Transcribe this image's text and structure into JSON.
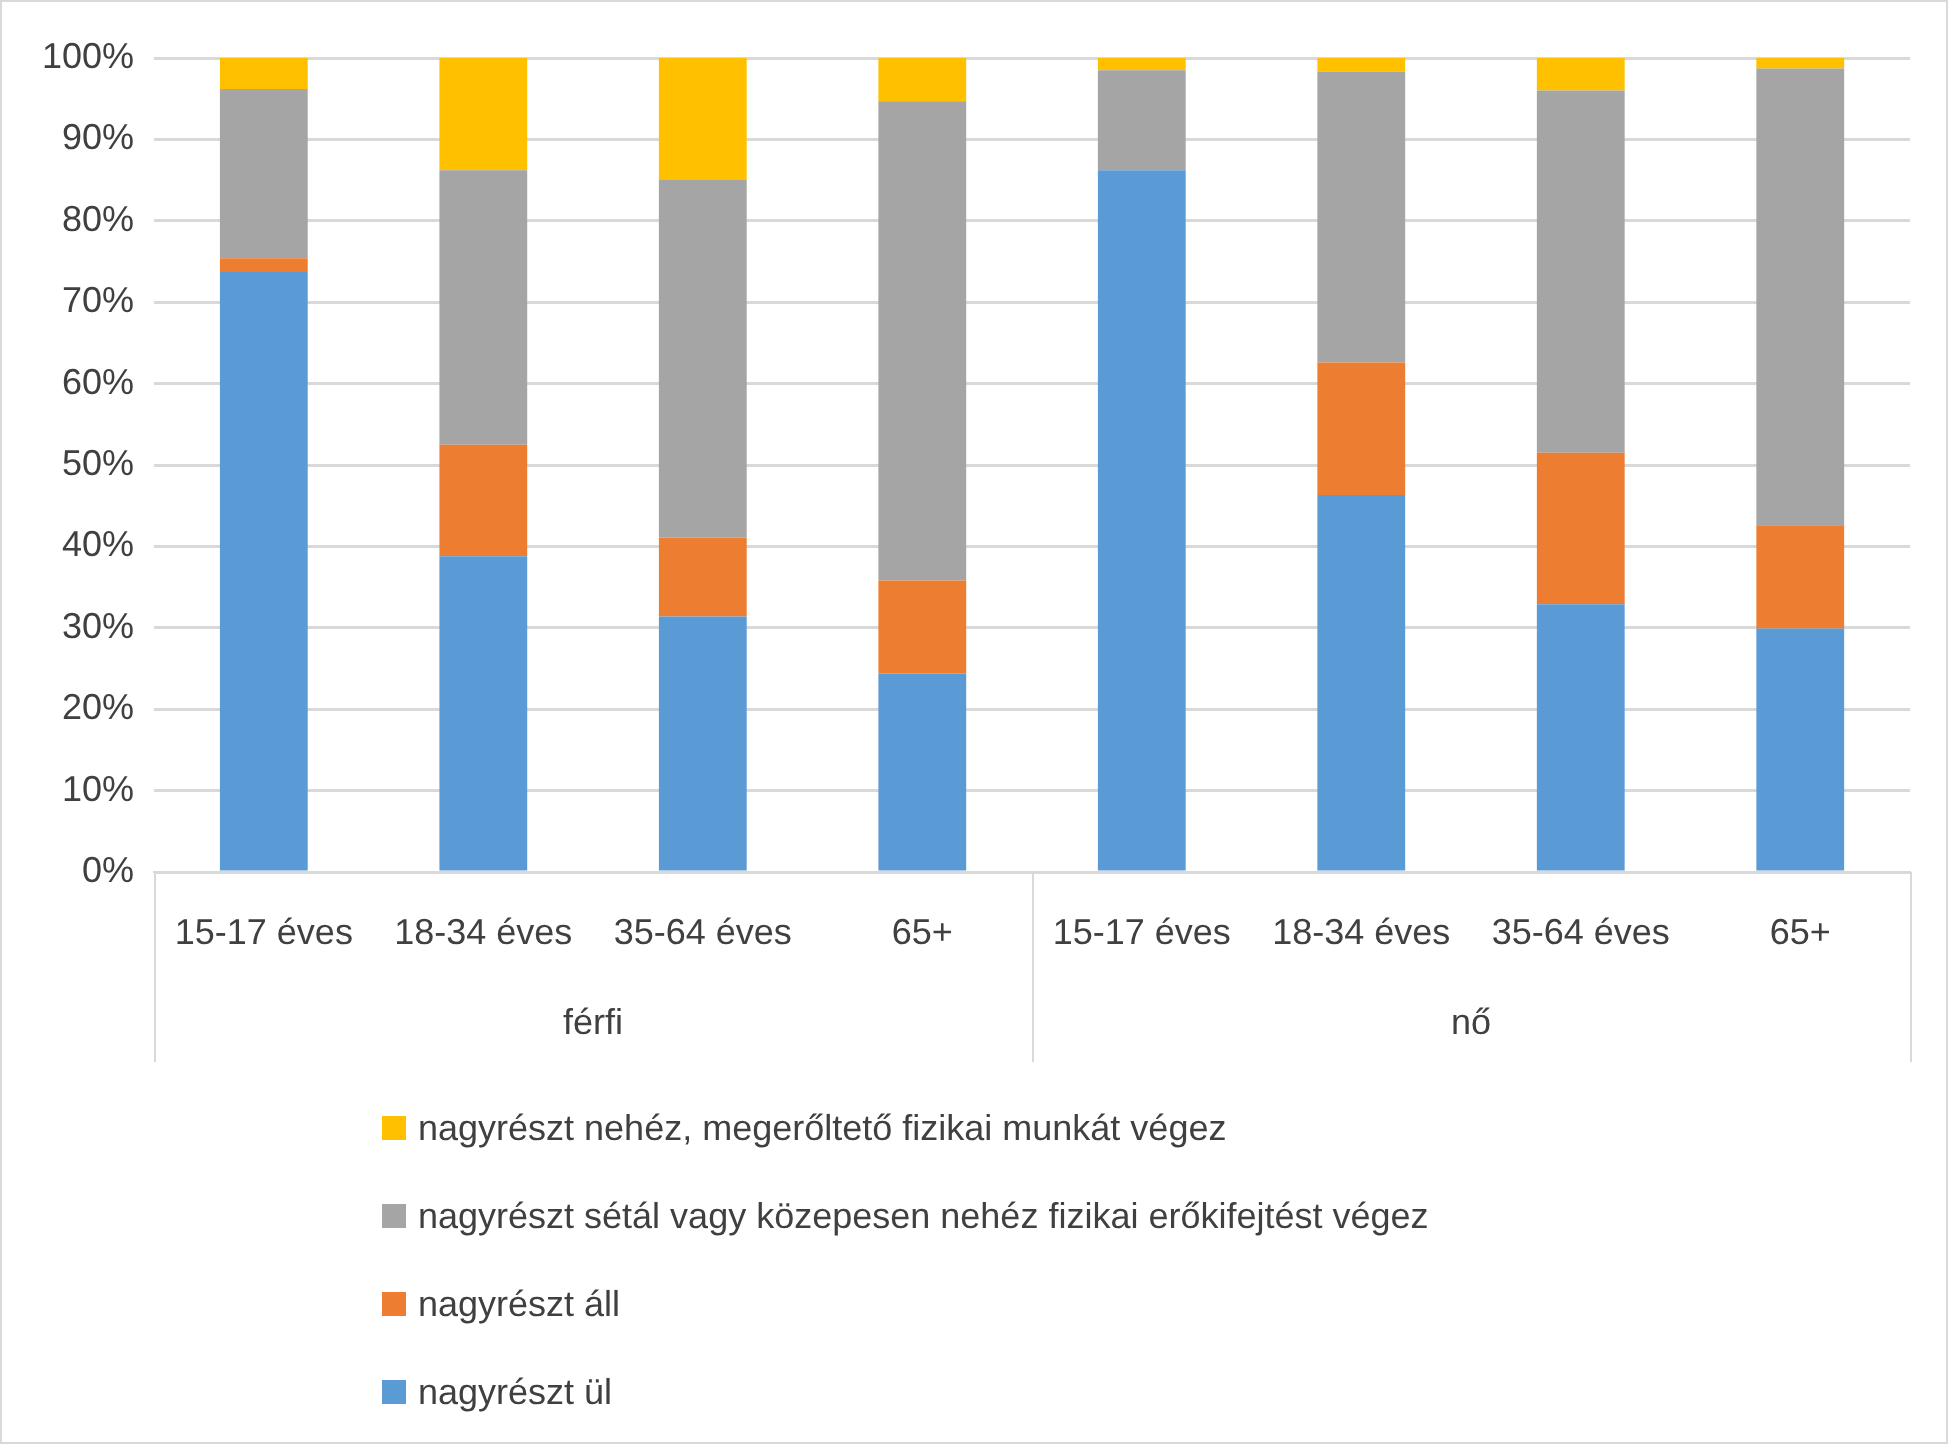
{
  "chart_data": {
    "type": "bar",
    "stacked": true,
    "categories": [
      "15-17 éves",
      "18-34 éves",
      "35-64 éves",
      "65+",
      "15-17 éves",
      "18-34 éves",
      "35-64 éves",
      "65+"
    ],
    "series": [
      {
        "name": "nagyrészt ül",
        "color": "#5b9bd5",
        "values": [
          73.7,
          38.8,
          31.4,
          24.4,
          86.2,
          46.3,
          32.9,
          29.9
        ]
      },
      {
        "name": "nagyrészt áll",
        "color": "#ed7d31",
        "values": [
          1.7,
          13.7,
          9.7,
          11.4,
          0,
          16.3,
          18.6,
          12.7
        ]
      },
      {
        "name": "nagyrészt sétál vagy közepesen nehéz fizikai erőkifejtést végez",
        "color": "#a5a5a5",
        "values": [
          20.8,
          33.7,
          43.9,
          58.9,
          12.3,
          35.7,
          44.5,
          56.1
        ]
      },
      {
        "name": "nagyrészt nehéz, megerőltető fizikai munkát végez",
        "color": "#ffc000",
        "values": [
          3.8,
          13.8,
          15.0,
          5.3,
          1.5,
          1.7,
          4.0,
          1.3
        ]
      }
    ],
    "annotations": [
      "férfi",
      "nő"
    ],
    "ylim": [
      0,
      100
    ],
    "yticks": [
      {
        "value": 0,
        "label": "0%"
      },
      {
        "value": 10,
        "label": "10%"
      },
      {
        "value": 20,
        "label": "20%"
      },
      {
        "value": 30,
        "label": "30%"
      },
      {
        "value": 40,
        "label": "40%"
      },
      {
        "value": 50,
        "label": "50%"
      },
      {
        "value": 60,
        "label": "60%"
      },
      {
        "value": 70,
        "label": "70%"
      },
      {
        "value": 80,
        "label": "80%"
      },
      {
        "value": 90,
        "label": "90%"
      },
      {
        "value": 100,
        "label": "100%"
      }
    ],
    "grid": "y",
    "legend": "bottom"
  }
}
